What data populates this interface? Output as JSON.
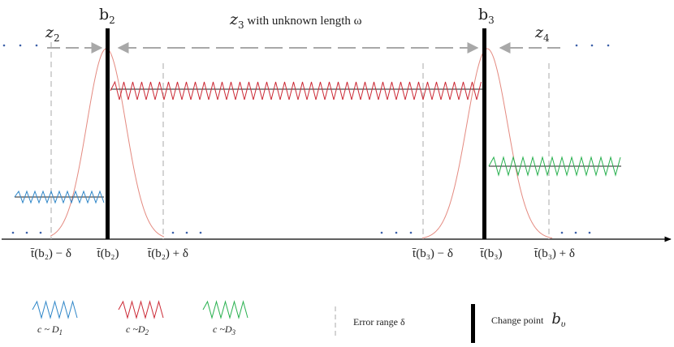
{
  "segments": {
    "z2": {
      "main": "z",
      "sub": "2"
    },
    "z3": {
      "main": "z",
      "sub": "3",
      "suffix": " with unknown length ω"
    },
    "z4": {
      "main": "z",
      "sub": "4"
    }
  },
  "change_points": {
    "b2": {
      "main": "b",
      "sub": "2"
    },
    "b3": {
      "main": "b",
      "sub": "3"
    }
  },
  "axis_labels": {
    "b2_minus": "t̄(b₂) − δ",
    "b2": "t̄(b₂)",
    "b2_plus": "t̄(b₂) + δ",
    "b3_minus": "t̄(b₃) − δ",
    "b3": "t̄(b₃)",
    "b3_plus": "t̄(b₃) + δ"
  },
  "legend": {
    "d1": {
      "label": "c ~ D",
      "sub": "1",
      "color": "#2e86c8"
    },
    "d2": {
      "label": "c ~D",
      "sub": "2",
      "color": "#cc2a36"
    },
    "d3": {
      "label": "c ~D",
      "sub": "3",
      "color": "#27b04e"
    },
    "error_range": "Error range δ",
    "change_point": {
      "label": "Change point",
      "sym": "b",
      "sub": "υ"
    }
  },
  "colors": {
    "bell_curve": "#e48a80",
    "dashed": "#b8b8b8",
    "axis": "#000000",
    "dots": "#3b5fa8"
  }
}
